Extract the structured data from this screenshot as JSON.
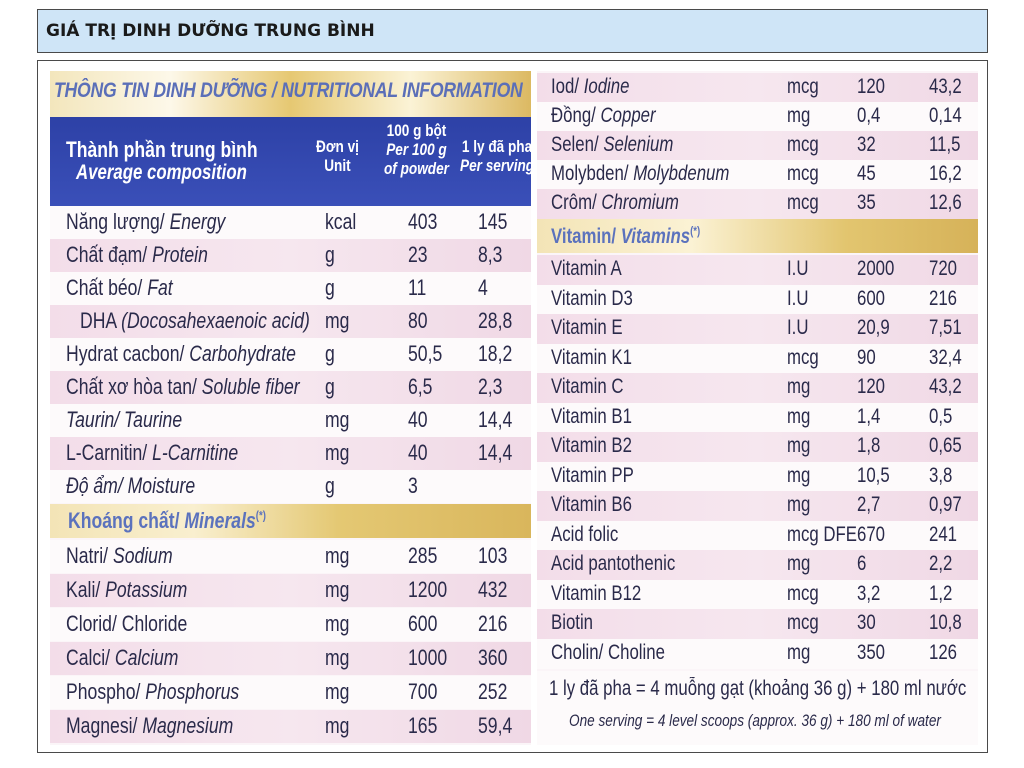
{
  "header": {
    "title": "GIÁ TRỊ DINH DƯỠNG TRUNG BÌNH"
  },
  "left": {
    "title": "THÔNG TIN DINH DƯỠNG / NUTRITIONAL INFORMATION",
    "columns": {
      "composition_vi": "Thành phần trung bình",
      "composition_en": "Average composition",
      "unit_vi": "Đơn vị",
      "unit_en": "Unit",
      "per100_vi": "100 g bột",
      "per100_en1": "Per 100 g",
      "per100_en2": "of powder",
      "serving_vi": "1 ly đã pha",
      "serving_en": "Per serving"
    },
    "rows": [
      {
        "vi": "Năng lượng/ ",
        "en": "Energy",
        "unit": "kcal",
        "v1": "403",
        "v2": "145"
      },
      {
        "vi": "Chất đạm/ ",
        "en": "Protein",
        "unit": "g",
        "v1": "23",
        "v2": "8,3"
      },
      {
        "vi": "Chất béo/ ",
        "en": "Fat",
        "unit": "g",
        "v1": "11",
        "v2": "4"
      },
      {
        "vi": "DHA ",
        "en": "(Docosahexaenoic acid)",
        "unit": "mg",
        "v1": "80",
        "v2": "28,8"
      },
      {
        "vi": "Hydrat cacbon/ ",
        "en": "Carbohydrate",
        "unit": "g",
        "v1": "50,5",
        "v2": "18,2"
      },
      {
        "vi": "Chất xơ hòa tan/ ",
        "en": "Soluble fiber",
        "unit": "g",
        "v1": "6,5",
        "v2": "2,3"
      },
      {
        "vi": "",
        "en": "Taurin/ Taurine",
        "unit": "mg",
        "v1": "40",
        "v2": "14,4"
      },
      {
        "vi": "L-Carnitin/ ",
        "en": "L-Carnitine",
        "unit": "mg",
        "v1": "40",
        "v2": "14,4"
      },
      {
        "vi": "",
        "en": "Độ ẩm/ Moisture",
        "unit": "g",
        "v1": "3",
        "v2": ""
      }
    ],
    "minerals_title_vi": "Khoáng chất/ ",
    "minerals_title_en": "Minerals",
    "minerals_mark": "(*)",
    "minerals": [
      {
        "vi": "Natri/ ",
        "en": "Sodium",
        "unit": "mg",
        "v1": "285",
        "v2": "103"
      },
      {
        "vi": "Kali/ ",
        "en": "Potassium",
        "unit": "mg",
        "v1": "1200",
        "v2": "432"
      },
      {
        "vi": "Clorid/ Chloride",
        "en": "",
        "unit": "mg",
        "v1": "600",
        "v2": "216"
      },
      {
        "vi": "Calci/ ",
        "en": "Calcium",
        "unit": "mg",
        "v1": "1000",
        "v2": "360"
      },
      {
        "vi": "Phospho/ ",
        "en": "Phosphorus",
        "unit": "mg",
        "v1": "700",
        "v2": "252"
      },
      {
        "vi": "Magnesi/ ",
        "en": "Magnesium",
        "unit": "mg",
        "v1": "165",
        "v2": "59,4"
      }
    ]
  },
  "right": {
    "minerals": [
      {
        "vi": "Iod/ ",
        "en": "Iodine",
        "unit": "mcg",
        "v1": "120",
        "v2": "43,2"
      },
      {
        "vi": "Đồng/ ",
        "en": "Copper",
        "unit": "mg",
        "v1": "0,4",
        "v2": "0,14"
      },
      {
        "vi": "Selen/ ",
        "en": "Selenium",
        "unit": "mcg",
        "v1": "32",
        "v2": "11,5"
      },
      {
        "vi": "Molybden/ ",
        "en": "Molybdenum",
        "unit": "mcg",
        "v1": "45",
        "v2": "16,2"
      },
      {
        "vi": "Crôm/ ",
        "en": "Chromium",
        "unit": "mcg",
        "v1": "35",
        "v2": "12,6"
      }
    ],
    "vitamins_title_vi": "Vitamin/ ",
    "vitamins_title_en": "Vitamins",
    "vitamins_mark": "(*)",
    "vitamins": [
      {
        "name": "Vitamin A",
        "unit": "I.U",
        "v1": "2000",
        "v2": "720"
      },
      {
        "name": "Vitamin D3",
        "unit": "I.U",
        "v1": "600",
        "v2": "216"
      },
      {
        "name": "Vitamin E",
        "unit": "I.U",
        "v1": "20,9",
        "v2": "7,51"
      },
      {
        "name": "Vitamin K1",
        "unit": "mcg",
        "v1": "90",
        "v2": "32,4"
      },
      {
        "name": "Vitamin C",
        "unit": "mg",
        "v1": "120",
        "v2": "43,2"
      },
      {
        "name": "Vitamin B1",
        "unit": "mg",
        "v1": "1,4",
        "v2": "0,5"
      },
      {
        "name": "Vitamin B2",
        "unit": "mg",
        "v1": "1,8",
        "v2": "0,65"
      },
      {
        "name": "Vitamin PP",
        "unit": "mg",
        "v1": "10,5",
        "v2": "3,8"
      },
      {
        "name": "Vitamin B6",
        "unit": "mg",
        "v1": "2,7",
        "v2": "0,97"
      },
      {
        "name": "Acid folic",
        "unit": "mcg DFE",
        "v1": "670",
        "v2": "241"
      },
      {
        "name": "Acid pantothenic",
        "unit": "mg",
        "v1": "6",
        "v2": "2,2"
      },
      {
        "name": "Vitamin B12",
        "unit": "mcg",
        "v1": "3,2",
        "v2": "1,2"
      },
      {
        "name": "Biotin",
        "unit": "mcg",
        "v1": "30",
        "v2": "10,8"
      },
      {
        "name": "Cholin/ Choline",
        "unit": "mg",
        "v1": "350",
        "v2": "126"
      }
    ],
    "footer_vi": "1 ly đã pha = 4 muỗng gạt (khoảng 36 g) + 180 ml nước",
    "footer_en": "One serving = 4 level scoops (approx. 36 g) + 180 ml of water"
  }
}
